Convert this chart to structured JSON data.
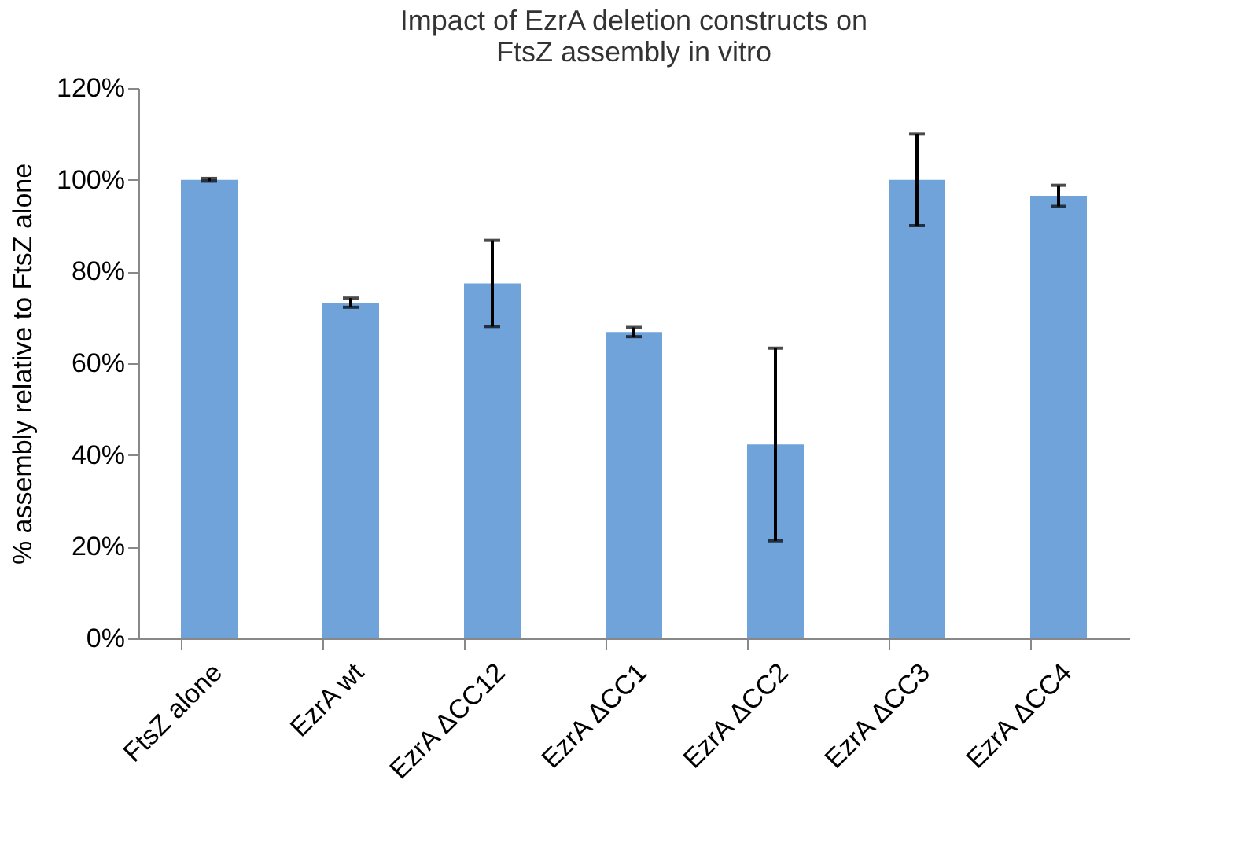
{
  "chart_data": {
    "type": "bar",
    "title": [
      "Impact of EzrA deletion constructs on",
      "FtsZ assembly in vitro"
    ],
    "ylabel": "% assembly relative to FtsZ alone",
    "categories": [
      "FtsZ alone",
      "EzrA wt",
      "EzrA ΔCC12",
      "EzrA ΔCC1",
      "EzrA ΔCC2",
      "EzrA ΔCC3",
      "EzrA ΔCC4"
    ],
    "values": [
      100,
      73.2,
      77.4,
      66.8,
      42.3,
      100,
      96.5
    ],
    "errors": [
      0.3,
      1,
      9.4,
      1,
      21,
      10,
      2.3
    ],
    "color": "#6fa3d9",
    "ylim": [
      0,
      120
    ],
    "yticks": [
      {
        "value": 0,
        "label": "0%"
      },
      {
        "value": 20,
        "label": "20%"
      },
      {
        "value": 40,
        "label": "40%"
      },
      {
        "value": 60,
        "label": "60%"
      },
      {
        "value": 80,
        "label": "80%"
      },
      {
        "value": 100,
        "label": "100%"
      },
      {
        "value": 120,
        "label": "120%"
      }
    ],
    "grid": false
  }
}
